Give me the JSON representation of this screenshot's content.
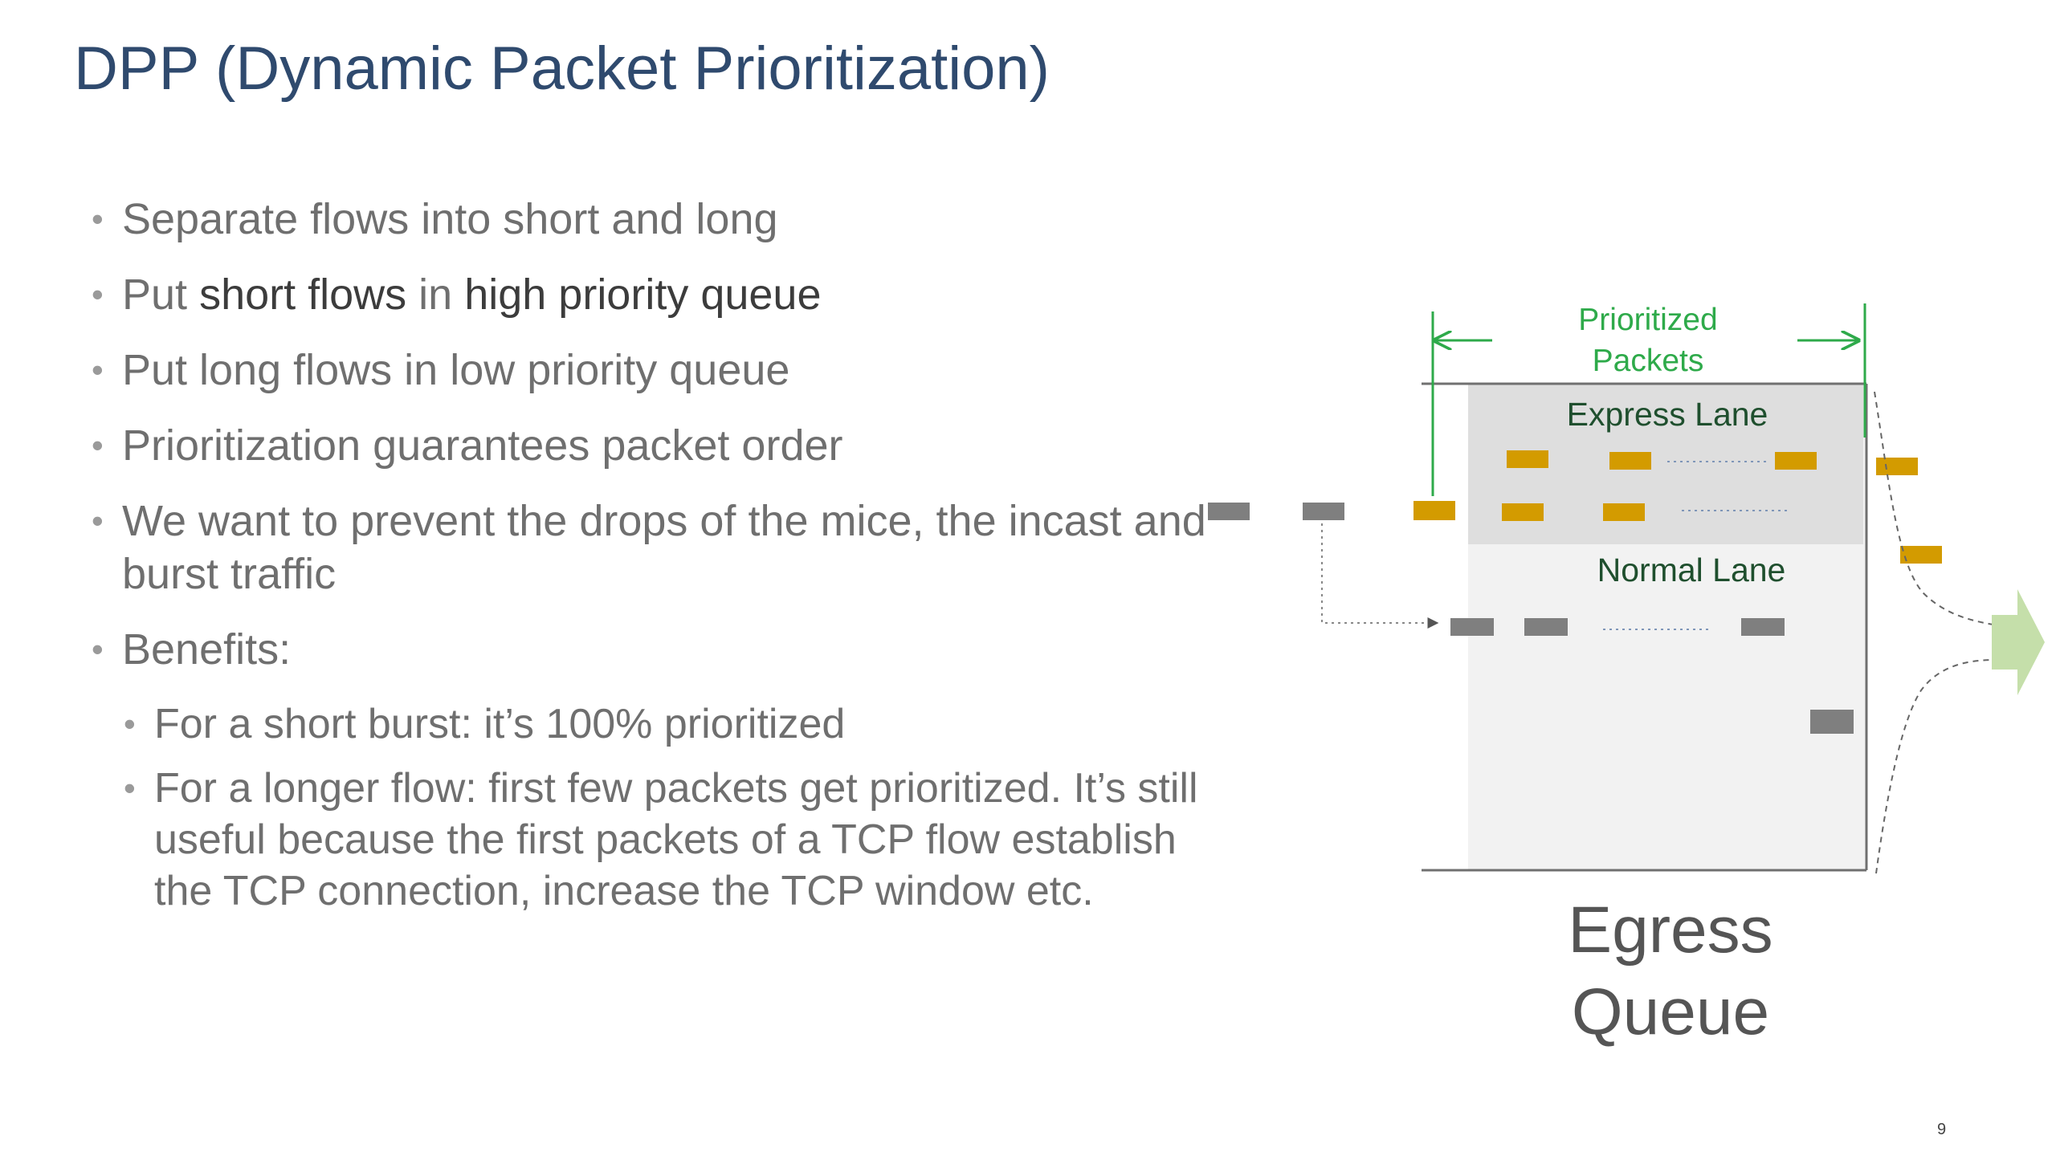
{
  "title": "DPP (Dynamic Packet Prioritization)",
  "bullets": {
    "b1": "Separate flows into short and long",
    "b2": {
      "pre": "Put ",
      "bold1": "short flows",
      "mid": " in ",
      "bold2": "high priority queue"
    },
    "b3": "Put long flows in low priority queue",
    "b4": "Prioritization guarantees packet order",
    "b5": "We want to prevent the drops of the mice, the incast and burst traffic",
    "b6": "Benefits:",
    "sub1": "For a short burst: it’s 100% prioritized",
    "sub2": "For a longer flow: first few packets get prioritized. It’s still useful because the first packets of a TCP flow establish the TCP connection, increase the TCP window etc."
  },
  "diagram": {
    "prioritized_label_1": "Prioritized",
    "prioritized_label_2": "Packets",
    "express_lane": "Express Lane",
    "normal_lane": "Normal Lane",
    "egress_1": "Egress",
    "egress_2": "Queue",
    "colors": {
      "prioritized_packet": "#d39b00",
      "normal_packet": "#7f7f7f",
      "express_lane_bg": "#dedede",
      "queue_bg": "#f2f2f2",
      "marker_green": "#2eaa4a",
      "output_arrow": "#c5dfaa"
    }
  },
  "page_number": "9"
}
